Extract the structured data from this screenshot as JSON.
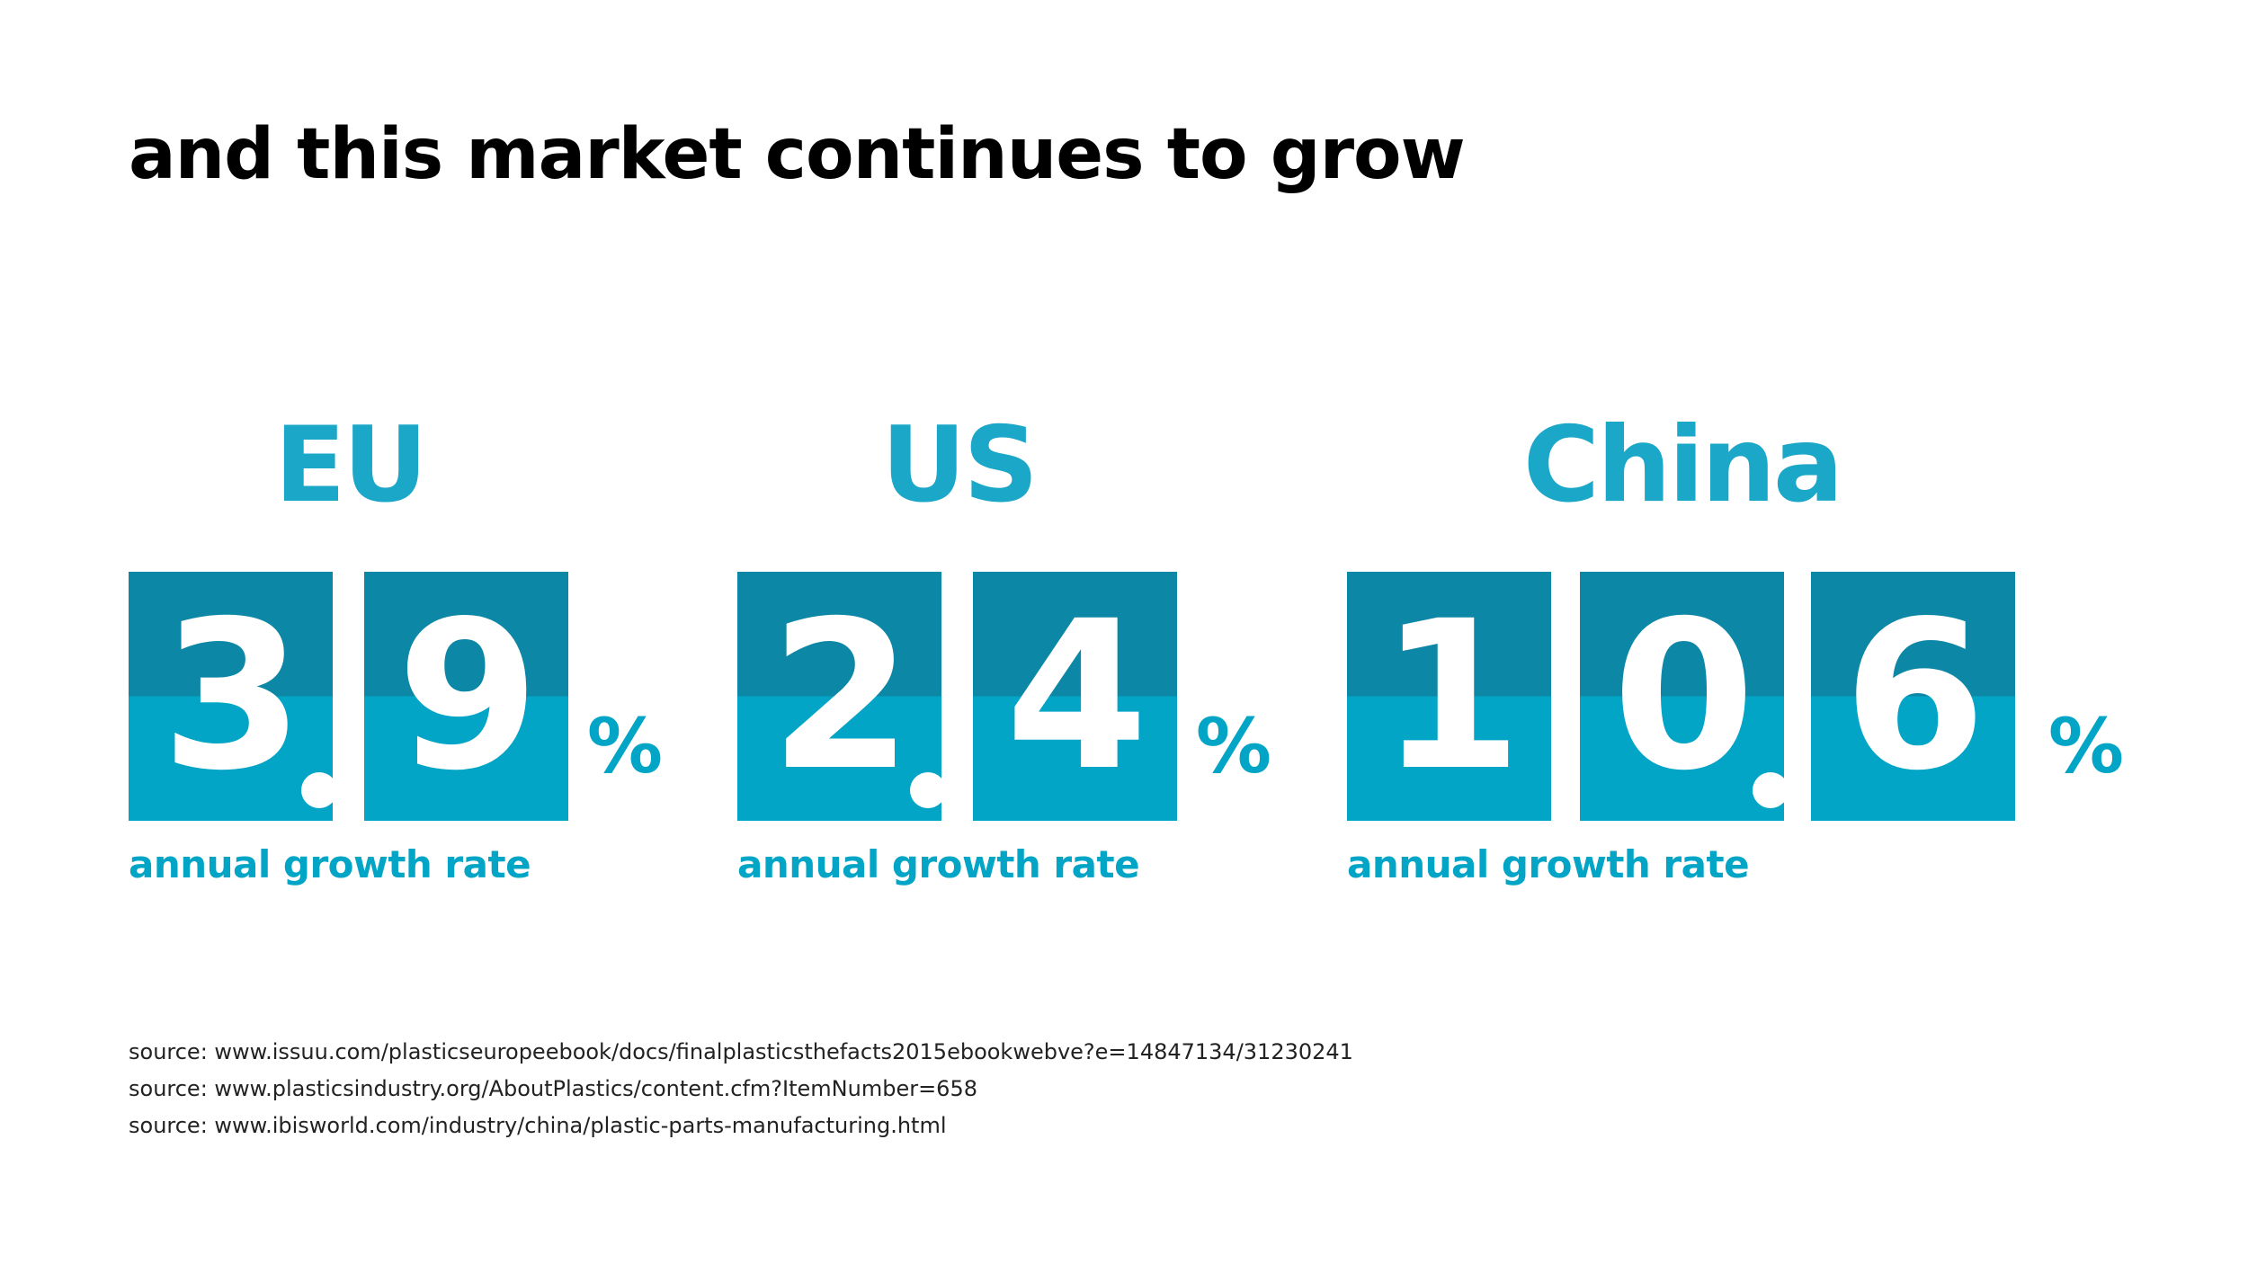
{
  "title": "and this market continues to grow",
  "stats": [
    {
      "region": "EU",
      "digits": [
        "3",
        "9"
      ],
      "percent_sign": "%",
      "caption": "annual growth rate"
    },
    {
      "region": "US",
      "digits": [
        "2",
        "4"
      ],
      "percent_sign": "%",
      "caption": "annual growth rate"
    },
    {
      "region": "China",
      "digits": [
        "1",
        "0",
        "6"
      ],
      "percent_sign": "%",
      "caption": "annual growth rate"
    }
  ],
  "sources": [
    "source: www.issuu.com/plasticseuropeebook/docs/finalplasticsthefacts2015ebookwebve?e=14847134/31230241",
    "source: www.plasticsindustry.org/AboutPlastics/content.cfm?ItemNumber=658",
    "source: www.ibisworld.com/industry/china/plastic-parts-manufacturing.html"
  ],
  "colors": {
    "title": "#000000",
    "accent": "#1ba7c8",
    "tile_dark": "#0d87a6",
    "tile_light": "#03a5c6",
    "digit": "#ffffff"
  }
}
